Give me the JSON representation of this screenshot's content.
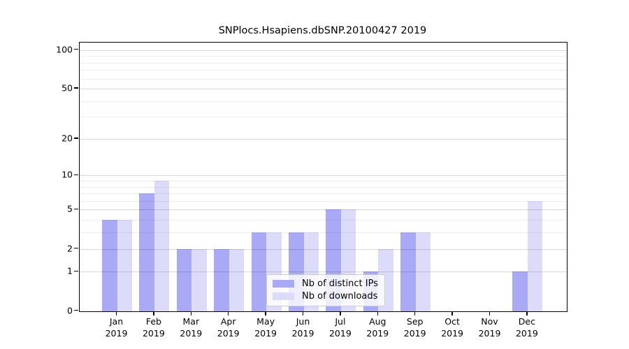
{
  "chart_data": {
    "type": "bar",
    "title": "SNPlocs.Hsapiens.dbSNP.20100427 2019",
    "year": "2019",
    "months": [
      "Jan",
      "Feb",
      "Mar",
      "Apr",
      "May",
      "Jun",
      "Jul",
      "Aug",
      "Sep",
      "Oct",
      "Nov",
      "Dec"
    ],
    "series": [
      {
        "name": "Nb of distinct IPs",
        "color": "#a9a9f6",
        "values": [
          4,
          7,
          2,
          2,
          3,
          3,
          5,
          1,
          3,
          0,
          0,
          1
        ]
      },
      {
        "name": "Nb of downloads",
        "color": "#dcdcfa",
        "values": [
          4,
          9,
          2,
          2,
          3,
          3,
          5,
          2,
          3,
          0,
          0,
          6
        ]
      }
    ],
    "y_scale": "log1p",
    "ylim": [
      0,
      115
    ],
    "y_ticks": [
      0,
      1,
      2,
      5,
      10,
      20,
      50,
      100
    ],
    "y_minor_gridlines": [
      3,
      4,
      6,
      7,
      8,
      9,
      30,
      40,
      60,
      70,
      80,
      90
    ],
    "grid": true,
    "legend_position": "bottom-center"
  }
}
